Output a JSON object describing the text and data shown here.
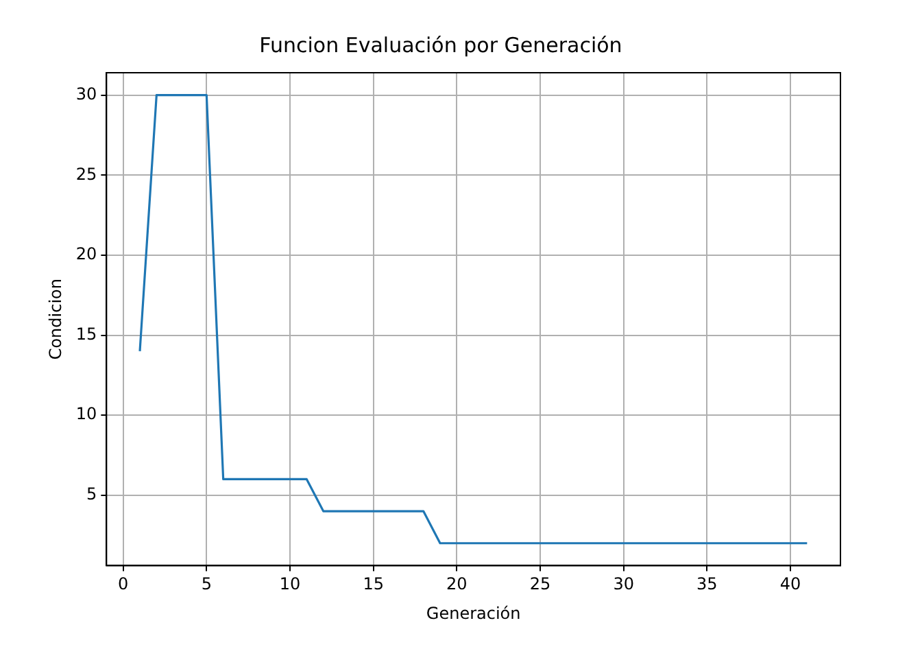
{
  "chart_data": {
    "type": "line",
    "title": "Funcion Evaluación por Generación",
    "xlabel": "Generación",
    "ylabel": "Condicion",
    "x": [
      1,
      2,
      3,
      4,
      5,
      6,
      7,
      8,
      9,
      10,
      11,
      12,
      13,
      14,
      15,
      16,
      17,
      18,
      19,
      20,
      21,
      22,
      23,
      24,
      25,
      26,
      27,
      28,
      29,
      30,
      31,
      32,
      33,
      34,
      35,
      36,
      37,
      38,
      39,
      40,
      41
    ],
    "series": [
      {
        "color": "#1f77b4",
        "values": [
          14,
          30,
          30,
          30,
          30,
          6,
          6,
          6,
          6,
          6,
          6,
          4,
          4,
          4,
          4,
          4,
          4,
          4,
          2,
          2,
          2,
          2,
          2,
          2,
          2,
          2,
          2,
          2,
          2,
          2,
          2,
          2,
          2,
          2,
          2,
          2,
          2,
          2,
          2,
          2,
          2
        ]
      }
    ],
    "xlim": [
      -1,
      43
    ],
    "ylim": [
      0.6,
      31.4
    ],
    "xticks": [
      0,
      5,
      10,
      15,
      20,
      25,
      30,
      35,
      40
    ],
    "yticks": [
      5,
      10,
      15,
      20,
      25,
      30
    ],
    "grid": true,
    "marker": "none",
    "line_style": "solid"
  }
}
